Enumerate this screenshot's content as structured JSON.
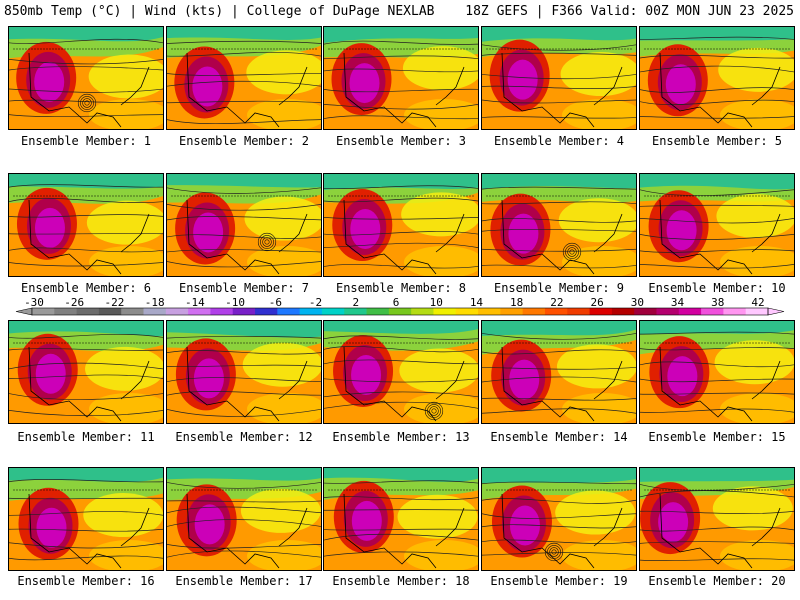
{
  "header": {
    "left_title": "850mb Temp (°C) | Wind (kts) | College of DuPage NEXLAB",
    "right_title": "18Z GEFS | F366 Valid: 00Z MON JUN 23 2025"
  },
  "colorbar": {
    "labels": [
      "-30",
      "-26",
      "-22",
      "-18",
      "-14",
      "-10",
      "-6",
      "-2",
      "2",
      "6",
      "10",
      "14",
      "18",
      "22",
      "26",
      "30",
      "34",
      "38",
      "42"
    ],
    "colors": [
      "#9a9a9a",
      "#808080",
      "#6c6c6c",
      "#5a5a5a",
      "#8c8c8c",
      "#a8a8c8",
      "#c7a0e0",
      "#d070f0",
      "#b040e8",
      "#7820c8",
      "#3030d0",
      "#1e78ff",
      "#00b4f0",
      "#00d2c8",
      "#20c88c",
      "#40be46",
      "#78c81e",
      "#b4dc14",
      "#f0f000",
      "#ffdc00",
      "#ffbe00",
      "#ffa000",
      "#ff7800",
      "#ff5000",
      "#f03c00",
      "#dc0000",
      "#b40000",
      "#a0003c",
      "#b4006e",
      "#d200a0",
      "#f050dc",
      "#ff96f0",
      "#ffc8ff"
    ]
  },
  "panels": [
    {
      "label": "Ensemble Member: 1"
    },
    {
      "label": "Ensemble Member: 2"
    },
    {
      "label": "Ensemble Member: 3"
    },
    {
      "label": "Ensemble Member: 4"
    },
    {
      "label": "Ensemble Member: 5"
    },
    {
      "label": "Ensemble Member: 6"
    },
    {
      "label": "Ensemble Member: 7"
    },
    {
      "label": "Ensemble Member: 8"
    },
    {
      "label": "Ensemble Member: 9"
    },
    {
      "label": "Ensemble Member: 10"
    },
    {
      "label": "Ensemble Member: 11"
    },
    {
      "label": "Ensemble Member: 12"
    },
    {
      "label": "Ensemble Member: 13"
    },
    {
      "label": "Ensemble Member: 14"
    },
    {
      "label": "Ensemble Member: 15"
    },
    {
      "label": "Ensemble Member: 16"
    },
    {
      "label": "Ensemble Member: 17"
    },
    {
      "label": "Ensemble Member: 18"
    },
    {
      "label": "Ensemble Member: 19"
    },
    {
      "label": "Ensemble Member: 20"
    }
  ]
}
